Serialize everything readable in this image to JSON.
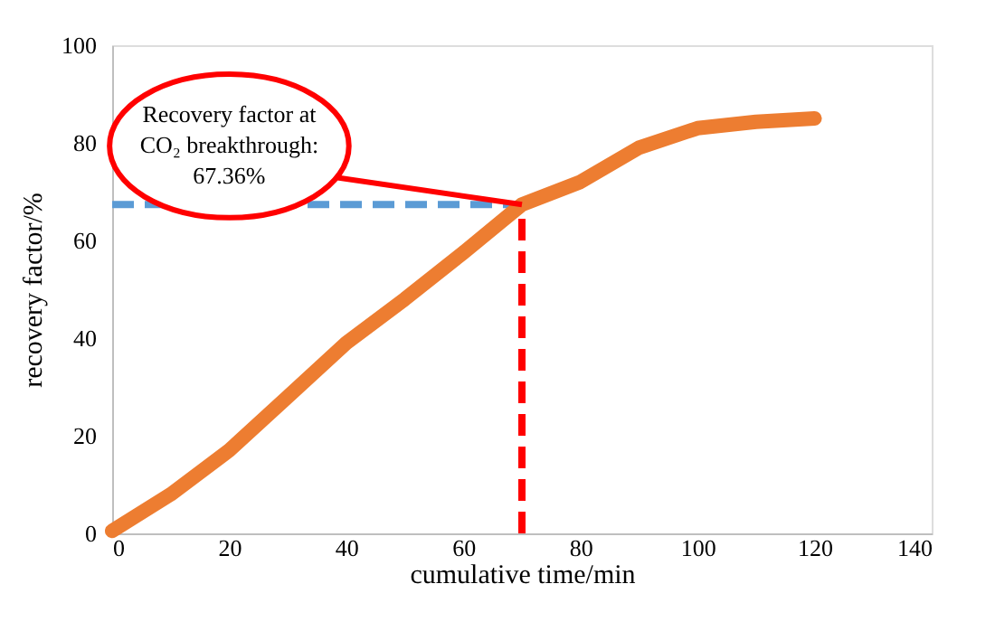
{
  "chart_data": {
    "type": "line",
    "xlabel": "cumulative time/min",
    "ylabel": "recovery factor/%",
    "x": [
      0,
      10,
      20,
      30,
      40,
      50,
      60,
      70,
      80,
      90,
      100,
      110,
      120
    ],
    "series": [
      {
        "color": "#ed7d31",
        "values": [
          0.5,
          8,
          17,
          28,
          39,
          48,
          57.5,
          67.36,
          72,
          79,
          83,
          84.3,
          85
        ]
      }
    ],
    "xlim": [
      0,
      140
    ],
    "xticks": [
      0,
      20,
      40,
      60,
      80,
      100,
      120,
      140
    ],
    "ylim": [
      0,
      100
    ],
    "yticks": [
      0,
      20,
      40,
      60,
      80,
      100
    ],
    "ref_lines": [
      {
        "axis": "y",
        "value": 67.36,
        "color": "#5b9bd5",
        "line_style": "dashed"
      },
      {
        "axis": "x",
        "value": 70,
        "color": "#ff0000",
        "line_style": "dashed"
      }
    ],
    "annotations": [
      {
        "text": "Recovery factor at\nCO₂ breakthrough:\n67.36%",
        "x": 70,
        "y": 67.36
      }
    ],
    "grid": false,
    "marker": "none",
    "line_style": "solid"
  }
}
